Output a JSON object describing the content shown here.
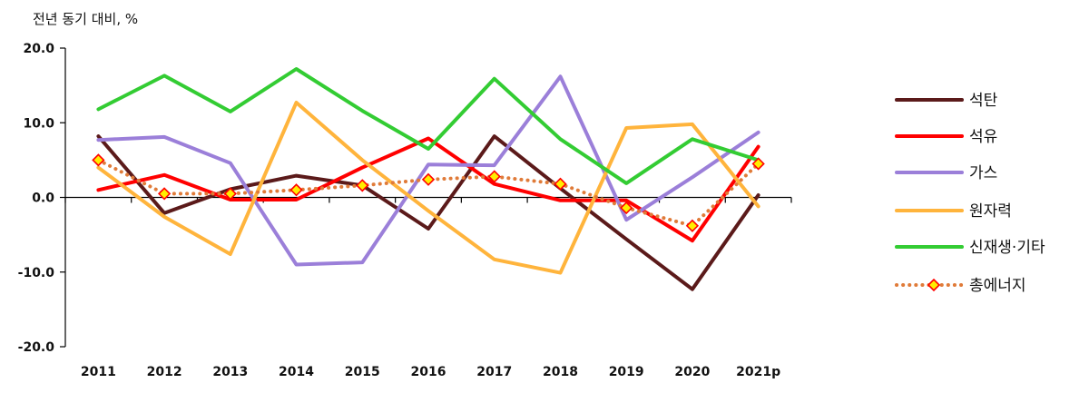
{
  "chart_data": {
    "type": "line",
    "ylabel": "전년 동기 대비, %",
    "ylim": [
      -20,
      20
    ],
    "yticks": [
      20,
      10,
      0,
      -10,
      -20
    ],
    "ytick_labels": [
      "20.0",
      "10.0",
      "0.0",
      "-10.0",
      "-20.0"
    ],
    "categories": [
      "2011",
      "2012",
      "2013",
      "2014",
      "2015",
      "2016",
      "2017",
      "2018",
      "2019",
      "2020",
      "2021p"
    ],
    "legend_position": "right",
    "series": [
      {
        "name": "석탄",
        "color": "#5b1a1a",
        "style": "solid",
        "marker": "none",
        "values": [
          8.2,
          -2.1,
          1.1,
          2.9,
          1.6,
          -4.2,
          8.2,
          1.2,
          -5.6,
          -12.3,
          0.3
        ]
      },
      {
        "name": "석유",
        "color": "#ff0000",
        "style": "solid",
        "marker": "none",
        "values": [
          1.0,
          3.0,
          -0.3,
          -0.3,
          4.0,
          7.9,
          1.8,
          -0.4,
          -0.4,
          -5.8,
          6.8
        ]
      },
      {
        "name": "가스",
        "color": "#9b7fd9",
        "style": "solid",
        "marker": "none",
        "values": [
          7.7,
          8.1,
          4.6,
          -9.0,
          -8.7,
          4.4,
          4.3,
          16.2,
          -3.0,
          2.7,
          8.7
        ]
      },
      {
        "name": "원자력",
        "color": "#ffb43c",
        "style": "solid",
        "marker": "none",
        "values": [
          4.0,
          -2.6,
          -7.6,
          12.7,
          5.0,
          -1.8,
          -8.3,
          -10.1,
          9.3,
          9.8,
          -1.2
        ]
      },
      {
        "name": "신재생·기타",
        "color": "#33cc33",
        "style": "solid",
        "marker": "none",
        "values": [
          11.8,
          16.3,
          11.5,
          17.2,
          11.6,
          6.5,
          15.9,
          7.8,
          1.9,
          7.8,
          5.0
        ]
      },
      {
        "name": "총에너지",
        "color": "#e07b39",
        "style": "dotted",
        "marker": "diamond",
        "marker_fill": "#ffee00",
        "marker_edge": "#ff0000",
        "values": [
          5.0,
          0.5,
          0.5,
          1.0,
          1.6,
          2.4,
          2.8,
          1.8,
          -1.4,
          -3.8,
          4.5
        ]
      }
    ]
  }
}
